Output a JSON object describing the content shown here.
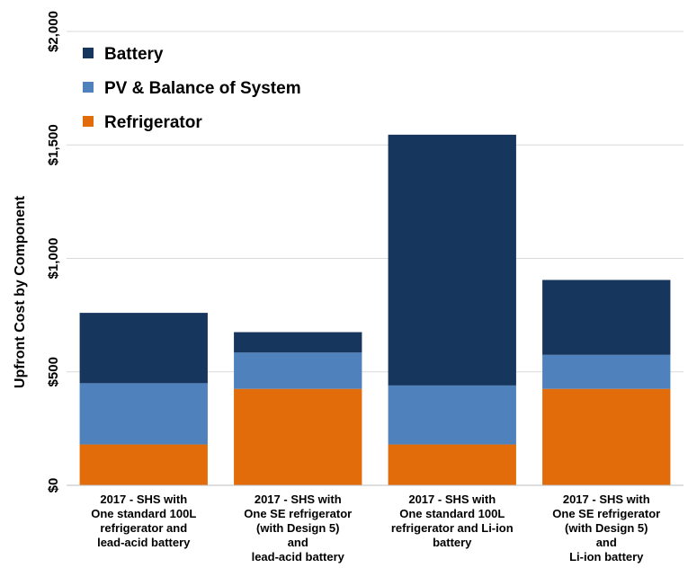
{
  "chart_data": {
    "type": "bar",
    "stacked": true,
    "ylabel": "Upfront Cost by Component",
    "ylim": [
      0,
      2000
    ],
    "yticks": [
      0,
      500,
      1000,
      1500,
      2000
    ],
    "ytick_labels": [
      "$0",
      "$500",
      "$1,000",
      "$1,500",
      "$2,000"
    ],
    "grid": true,
    "legend_position": "top-left",
    "categories": [
      [
        "2017 - SHS with",
        "One standard 100L",
        "refrigerator and",
        "lead-acid battery"
      ],
      [
        "2017 - SHS with",
        "One SE refrigerator",
        "(with Design 5)",
        "and",
        "lead-acid battery"
      ],
      [
        "2017 - SHS with",
        "One standard 100L",
        "refrigerator and Li-ion",
        "battery"
      ],
      [
        "2017 - SHS with",
        "One SE refrigerator",
        "(with Design 5)",
        "and",
        "Li-ion battery"
      ]
    ],
    "series": [
      {
        "name": "Refrigerator",
        "color": "#E36C0A",
        "values": [
          180,
          425,
          180,
          425
        ]
      },
      {
        "name": "PV & Balance of System",
        "color": "#4F81BD",
        "values": [
          270,
          160,
          260,
          150
        ]
      },
      {
        "name": "Battery",
        "color": "#17365D",
        "values": [
          310,
          90,
          1105,
          330
        ]
      }
    ],
    "legend_order": [
      "Battery",
      "PV & Balance of System",
      "Refrigerator"
    ]
  }
}
